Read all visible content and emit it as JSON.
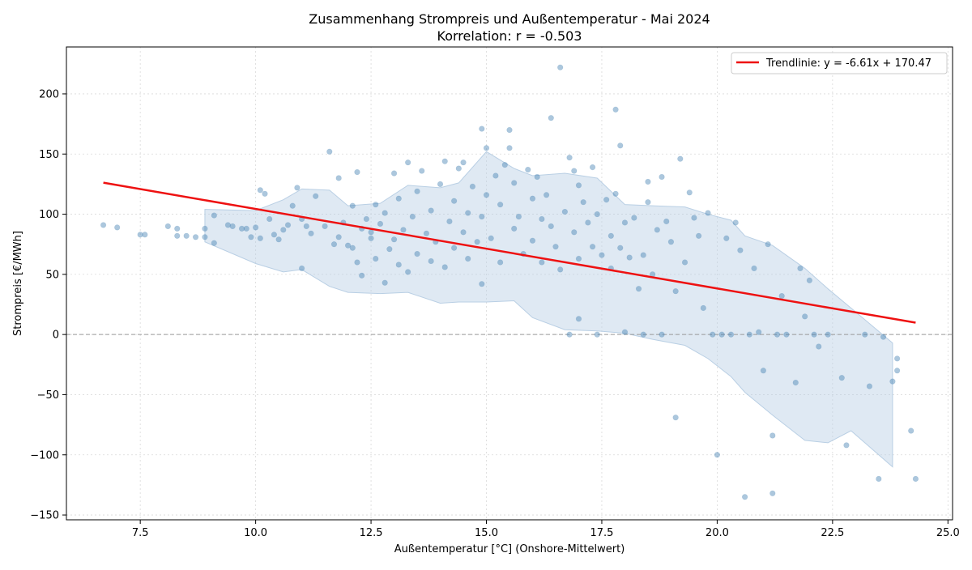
{
  "chart_data": {
    "type": "scatter",
    "title": "Zusammenhang Strompreis und Außentemperatur - Mai 2024",
    "subtitle": "Korrelation: r = -0.503",
    "xlabel": "Außentemperatur [°C] (Onshore-Mittelwert)",
    "ylabel": "Strompreis [€/MWh]",
    "xlim": [
      5.9,
      25.1
    ],
    "ylim": [
      -154,
      239
    ],
    "xticks": [
      7.5,
      10.0,
      12.5,
      15.0,
      17.5,
      20.0,
      22.5,
      25.0
    ],
    "xtick_labels": [
      "7.5",
      "10.0",
      "12.5",
      "15.0",
      "17.5",
      "20.0",
      "22.5",
      "25.0"
    ],
    "yticks": [
      -150,
      -100,
      -50,
      0,
      50,
      100,
      150,
      200
    ],
    "ytick_labels": [
      "−150",
      "−100",
      "−50",
      "0",
      "50",
      "100",
      "150",
      "200"
    ],
    "grid": true,
    "legend_position": "top-right",
    "zero_line": true,
    "colors": {
      "points": "#4682b4",
      "trend": "#ee1111",
      "band": "#b9cfe4",
      "zero_line": "#999999",
      "grid": "#d9d9d9"
    },
    "trendline": {
      "label": "Trendlinie: y = -6.61x + 170.47",
      "slope": -6.61,
      "intercept": 170.47,
      "x_range": [
        6.7,
        24.3
      ]
    },
    "band": {
      "x": [
        8.9,
        10.0,
        10.6,
        11.0,
        11.6,
        12.0,
        12.7,
        13.3,
        14.0,
        14.4,
        15.0,
        15.6,
        16.0,
        16.7,
        17.4,
        18.0,
        18.6,
        19.3,
        19.8,
        20.3,
        20.6,
        21.2,
        21.9,
        22.4,
        22.9,
        23.8
      ],
      "upper": [
        104,
        103,
        112,
        121,
        120,
        107,
        109,
        124,
        122,
        126,
        152,
        138,
        132,
        134,
        130,
        108,
        107,
        106,
        100,
        95,
        82,
        74,
        55,
        38,
        22,
        -7
      ],
      "lower": [
        77,
        59,
        52,
        54,
        40,
        35,
        34,
        35,
        26,
        27,
        27,
        28,
        14,
        4,
        3,
        1,
        -4,
        -9,
        -20,
        -35,
        -48,
        -67,
        -88,
        -90,
        -80,
        -110
      ]
    },
    "points": [
      [
        6.7,
        91
      ],
      [
        7.0,
        89
      ],
      [
        7.5,
        83
      ],
      [
        7.6,
        83
      ],
      [
        8.1,
        90
      ],
      [
        8.3,
        88
      ],
      [
        8.3,
        82
      ],
      [
        8.5,
        82
      ],
      [
        8.7,
        81
      ],
      [
        8.9,
        81
      ],
      [
        8.9,
        88
      ],
      [
        9.1,
        99
      ],
      [
        9.1,
        76
      ],
      [
        9.4,
        91
      ],
      [
        9.5,
        90
      ],
      [
        9.7,
        88
      ],
      [
        9.8,
        88
      ],
      [
        9.9,
        81
      ],
      [
        10.0,
        89
      ],
      [
        10.1,
        80
      ],
      [
        10.1,
        120
      ],
      [
        10.2,
        117
      ],
      [
        10.3,
        96
      ],
      [
        10.4,
        83
      ],
      [
        10.5,
        79
      ],
      [
        10.6,
        87
      ],
      [
        10.7,
        91
      ],
      [
        10.8,
        107
      ],
      [
        10.9,
        122
      ],
      [
        11.0,
        96
      ],
      [
        11.0,
        55
      ],
      [
        11.1,
        90
      ],
      [
        11.2,
        84
      ],
      [
        11.3,
        115
      ],
      [
        11.5,
        90
      ],
      [
        11.6,
        152
      ],
      [
        11.7,
        75
      ],
      [
        11.8,
        130
      ],
      [
        11.8,
        81
      ],
      [
        11.9,
        93
      ],
      [
        12.0,
        74
      ],
      [
        12.1,
        107
      ],
      [
        12.1,
        72
      ],
      [
        12.2,
        135
      ],
      [
        12.2,
        60
      ],
      [
        12.3,
        88
      ],
      [
        12.3,
        49
      ],
      [
        12.4,
        96
      ],
      [
        12.5,
        85
      ],
      [
        12.5,
        80
      ],
      [
        12.6,
        108
      ],
      [
        12.6,
        63
      ],
      [
        12.7,
        92
      ],
      [
        12.8,
        101
      ],
      [
        12.8,
        43
      ],
      [
        12.9,
        71
      ],
      [
        13.0,
        134
      ],
      [
        13.0,
        79
      ],
      [
        13.1,
        113
      ],
      [
        13.1,
        58
      ],
      [
        13.2,
        87
      ],
      [
        13.3,
        143
      ],
      [
        13.3,
        52
      ],
      [
        13.4,
        98
      ],
      [
        13.5,
        119
      ],
      [
        13.5,
        67
      ],
      [
        13.6,
        136
      ],
      [
        13.7,
        84
      ],
      [
        13.8,
        61
      ],
      [
        13.8,
        103
      ],
      [
        13.9,
        77
      ],
      [
        14.0,
        125
      ],
      [
        14.1,
        144
      ],
      [
        14.1,
        56
      ],
      [
        14.2,
        94
      ],
      [
        14.3,
        111
      ],
      [
        14.3,
        72
      ],
      [
        14.4,
        138
      ],
      [
        14.5,
        85
      ],
      [
        14.5,
        143
      ],
      [
        14.6,
        101
      ],
      [
        14.6,
        63
      ],
      [
        14.7,
        123
      ],
      [
        14.8,
        77
      ],
      [
        14.9,
        171
      ],
      [
        14.9,
        98
      ],
      [
        14.9,
        42
      ],
      [
        15.0,
        155
      ],
      [
        15.0,
        116
      ],
      [
        15.1,
        80
      ],
      [
        15.2,
        132
      ],
      [
        15.3,
        60
      ],
      [
        15.3,
        108
      ],
      [
        15.4,
        141
      ],
      [
        15.5,
        170
      ],
      [
        15.5,
        155
      ],
      [
        15.6,
        88
      ],
      [
        15.6,
        126
      ],
      [
        15.7,
        98
      ],
      [
        15.8,
        67
      ],
      [
        15.9,
        137
      ],
      [
        16.0,
        113
      ],
      [
        16.0,
        78
      ],
      [
        16.1,
        131
      ],
      [
        16.2,
        96
      ],
      [
        16.2,
        60
      ],
      [
        16.3,
        116
      ],
      [
        16.4,
        180
      ],
      [
        16.4,
        90
      ],
      [
        16.5,
        73
      ],
      [
        16.6,
        222
      ],
      [
        16.6,
        54
      ],
      [
        16.7,
        102
      ],
      [
        16.8,
        147
      ],
      [
        16.8,
        0
      ],
      [
        16.9,
        136
      ],
      [
        16.9,
        85
      ],
      [
        17.0,
        124
      ],
      [
        17.0,
        63
      ],
      [
        17.0,
        13
      ],
      [
        17.1,
        110
      ],
      [
        17.2,
        93
      ],
      [
        17.3,
        139
      ],
      [
        17.3,
        73
      ],
      [
        17.4,
        100
      ],
      [
        17.4,
        0
      ],
      [
        17.5,
        66
      ],
      [
        17.6,
        112
      ],
      [
        17.7,
        82
      ],
      [
        17.7,
        55
      ],
      [
        17.8,
        187
      ],
      [
        17.8,
        117
      ],
      [
        17.9,
        157
      ],
      [
        17.9,
        72
      ],
      [
        18.0,
        93
      ],
      [
        18.0,
        2
      ],
      [
        18.1,
        64
      ],
      [
        18.2,
        97
      ],
      [
        18.3,
        38
      ],
      [
        18.4,
        0
      ],
      [
        18.4,
        66
      ],
      [
        18.5,
        127
      ],
      [
        18.5,
        110
      ],
      [
        18.6,
        50
      ],
      [
        18.7,
        87
      ],
      [
        18.8,
        131
      ],
      [
        18.8,
        0
      ],
      [
        18.9,
        94
      ],
      [
        19.0,
        77
      ],
      [
        19.1,
        36
      ],
      [
        19.1,
        -69
      ],
      [
        19.2,
        146
      ],
      [
        19.3,
        60
      ],
      [
        19.4,
        118
      ],
      [
        19.5,
        97
      ],
      [
        19.6,
        82
      ],
      [
        19.7,
        22
      ],
      [
        19.8,
        101
      ],
      [
        19.9,
        0
      ],
      [
        20.0,
        -100
      ],
      [
        20.1,
        0
      ],
      [
        20.2,
        80
      ],
      [
        20.3,
        0
      ],
      [
        20.4,
        93
      ],
      [
        20.5,
        70
      ],
      [
        20.6,
        -135
      ],
      [
        20.7,
        0
      ],
      [
        20.8,
        55
      ],
      [
        20.9,
        2
      ],
      [
        21.0,
        -30
      ],
      [
        21.1,
        75
      ],
      [
        21.2,
        -132
      ],
      [
        21.2,
        -84
      ],
      [
        21.3,
        0
      ],
      [
        21.4,
        32
      ],
      [
        21.5,
        0
      ],
      [
        21.7,
        -40
      ],
      [
        21.8,
        55
      ],
      [
        21.9,
        15
      ],
      [
        22.0,
        45
      ],
      [
        22.1,
        0
      ],
      [
        22.2,
        -10
      ],
      [
        22.4,
        0
      ],
      [
        22.7,
        -36
      ],
      [
        22.8,
        -92
      ],
      [
        23.2,
        0
      ],
      [
        23.3,
        -43
      ],
      [
        23.5,
        -120
      ],
      [
        23.6,
        -2
      ],
      [
        23.8,
        -39
      ],
      [
        23.9,
        -20
      ],
      [
        23.9,
        -30
      ],
      [
        24.2,
        -80
      ],
      [
        24.3,
        -120
      ]
    ]
  }
}
